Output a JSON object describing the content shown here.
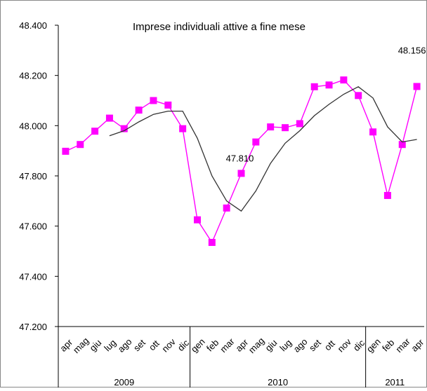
{
  "chart_data": {
    "type": "line",
    "title": "Imprese individuali attive a fine mese",
    "xlabel": "",
    "ylabel": "",
    "ylim": [
      47200,
      48400
    ],
    "yticks": [
      47200,
      47400,
      47600,
      47800,
      48000,
      48200,
      48400
    ],
    "ytick_labels": [
      "47.200",
      "47.400",
      "47.600",
      "47.800",
      "48.000",
      "48.200",
      "48.400"
    ],
    "grid": false,
    "legend": "none",
    "categories": [
      "apr",
      "mag",
      "giu",
      "lug",
      "ago",
      "set",
      "ott",
      "nov",
      "dic",
      "gen",
      "feb",
      "mar",
      "apr",
      "mag",
      "giu",
      "lug",
      "ago",
      "set",
      "ott",
      "nov",
      "dic",
      "gen",
      "feb",
      "mar",
      "apr"
    ],
    "year_groups": [
      {
        "label": "2009",
        "start": 0,
        "end": 8
      },
      {
        "label": "2010",
        "start": 9,
        "end": 20
      },
      {
        "label": "2011",
        "start": 21,
        "end": 24
      }
    ],
    "series": [
      {
        "marker": "square",
        "color": "#ff00ff",
        "values": [
          47898,
          47925,
          47978,
          48030,
          47988,
          48062,
          48100,
          48082,
          47988,
          47625,
          47535,
          47672,
          47810,
          47935,
          47995,
          47992,
          48008,
          48155,
          48162,
          48182,
          48120,
          47975,
          47722,
          47925,
          48156
        ]
      },
      {
        "marker": "none",
        "color": "#333333",
        "values": [
          null,
          null,
          null,
          47960,
          47980,
          48015,
          48045,
          48058,
          48058,
          47950,
          47800,
          47700,
          47660,
          47740,
          47850,
          47930,
          47980,
          48040,
          48085,
          48125,
          48155,
          48110,
          47995,
          47935,
          47945
        ]
      }
    ],
    "annotations": [
      {
        "index": 12,
        "series": 0,
        "text": "47.810"
      },
      {
        "index": 24,
        "series": 0,
        "text": "48.156"
      }
    ]
  }
}
